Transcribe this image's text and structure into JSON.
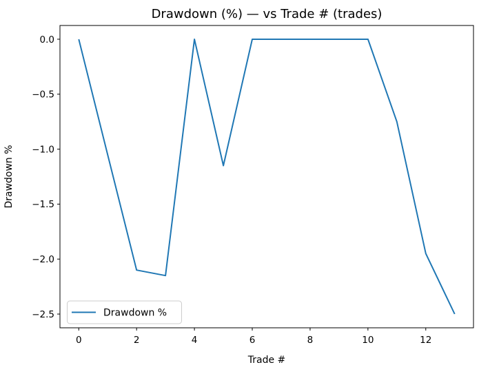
{
  "figure": {
    "background": "#ffffff",
    "frame_color": "#000000"
  },
  "chart_data": {
    "type": "line",
    "title": "Drawdown (%) — vs Trade # (trades)",
    "xlabel": "Trade #",
    "ylabel": "Drawdown %",
    "x": [
      0,
      1,
      2,
      3,
      4,
      5,
      6,
      7,
      8,
      9,
      10,
      11,
      12,
      13
    ],
    "series": [
      {
        "name": "Drawdown %",
        "color": "#1f77b4",
        "line_width": 2,
        "values": [
          0.0,
          -1.05,
          -2.1,
          -2.15,
          0.0,
          -1.15,
          0.0,
          0.0,
          0.0,
          0.0,
          0.0,
          -0.75,
          -1.95,
          -2.5
        ]
      }
    ],
    "xlim": [
      -0.65,
      13.65
    ],
    "ylim": [
      -2.625,
      0.125
    ],
    "xticks": [
      0,
      2,
      4,
      6,
      8,
      10,
      12
    ],
    "yticks": [
      0.0,
      -0.5,
      -1.0,
      -1.5,
      -2.0,
      -2.5
    ],
    "grid": false,
    "legend": {
      "label": "Drawdown %",
      "position": "lower left",
      "border_color": "#cccccc",
      "background": "#ffffff"
    }
  }
}
